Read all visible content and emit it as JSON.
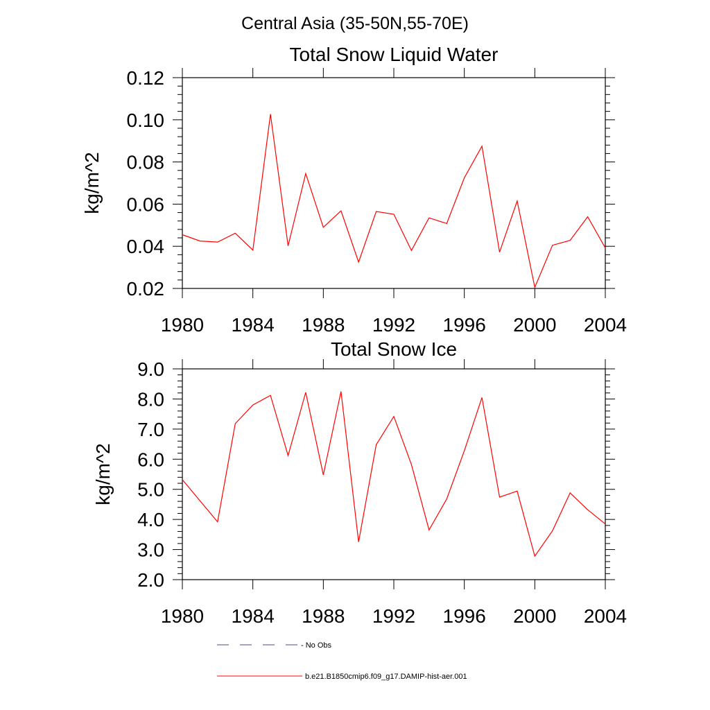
{
  "suptitle": "Central Asia (35-50N,55-70E)",
  "colors": {
    "model": "#ff0000",
    "obs": "#4a4a8a"
  },
  "legend": {
    "obs_label": "No Obs",
    "model_label": "b.e21.B1850cmip6.f09_g17.DAMIP-hist-aer.001"
  },
  "chart_data": [
    {
      "type": "line",
      "title": "Total Snow Liquid Water",
      "ylabel": "kg/m^2",
      "xlabel": "",
      "xlim": [
        1980,
        2004
      ],
      "ylim": [
        0.02,
        0.12
      ],
      "xticks": [
        1980,
        1984,
        1988,
        1992,
        1996,
        2000,
        2004
      ],
      "xtick_labels": [
        "1980",
        "1984",
        "1988",
        "1992",
        "1996",
        "2000",
        "2004"
      ],
      "yticks": [
        0.02,
        0.04,
        0.06,
        0.08,
        0.1,
        0.12
      ],
      "ytick_labels": [
        "0.02",
        "0.04",
        "0.06",
        "0.08",
        "0.10",
        "0.12"
      ],
      "series": [
        {
          "name": "b.e21.B1850cmip6.f09_g17.DAMIP-hist-aer.001",
          "x": [
            1980,
            1981,
            1982,
            1983,
            1984,
            1985,
            1986,
            1987,
            1988,
            1989,
            1990,
            1991,
            1992,
            1993,
            1994,
            1995,
            1996,
            1997,
            1998,
            1999,
            2000,
            2001,
            2002,
            2003,
            2004
          ],
          "y": [
            0.0455,
            0.0425,
            0.042,
            0.0462,
            0.0382,
            0.1027,
            0.0402,
            0.0745,
            0.049,
            0.0568,
            0.0325,
            0.0565,
            0.0552,
            0.038,
            0.0535,
            0.0508,
            0.0725,
            0.0875,
            0.0372,
            0.0615,
            0.0205,
            0.0405,
            0.0428,
            0.054,
            0.0392
          ]
        }
      ]
    },
    {
      "type": "line",
      "title": "Total Snow Ice",
      "ylabel": "kg/m^2",
      "xlabel": "",
      "xlim": [
        1980,
        2004
      ],
      "ylim": [
        2.0,
        9.0
      ],
      "xticks": [
        1980,
        1984,
        1988,
        1992,
        1996,
        2000,
        2004
      ],
      "xtick_labels": [
        "1980",
        "1984",
        "1988",
        "1992",
        "1996",
        "2000",
        "2004"
      ],
      "yticks": [
        2.0,
        3.0,
        4.0,
        5.0,
        6.0,
        7.0,
        8.0,
        9.0
      ],
      "ytick_labels": [
        "2.0",
        "3.0",
        "4.0",
        "5.0",
        "6.0",
        "7.0",
        "8.0",
        "9.0"
      ],
      "series": [
        {
          "name": "b.e21.B1850cmip6.f09_g17.DAMIP-hist-aer.001",
          "x": [
            1980,
            1981,
            1982,
            1983,
            1984,
            1985,
            1986,
            1987,
            1988,
            1989,
            1990,
            1991,
            1992,
            1993,
            1994,
            1995,
            1996,
            1997,
            1998,
            1999,
            2000,
            2001,
            2002,
            2003,
            2004
          ],
          "y": [
            5.32,
            4.62,
            3.92,
            7.18,
            7.8,
            8.12,
            6.12,
            8.22,
            5.48,
            8.25,
            3.25,
            6.48,
            7.42,
            5.82,
            3.65,
            4.68,
            6.28,
            8.05,
            4.74,
            4.94,
            2.78,
            3.62,
            4.88,
            4.32,
            3.85
          ]
        }
      ]
    }
  ]
}
